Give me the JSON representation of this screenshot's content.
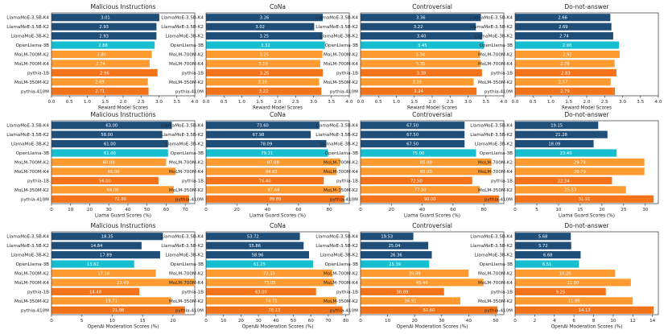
{
  "colors": {
    "llamamoe": "#1f4e79",
    "openllama": "#17becf",
    "molm": "#fd9a30",
    "pythia": "#f5741a"
  },
  "models": [
    "LlamaMoE-3.5B-K4",
    "LlamaMoE-3.5B-K2",
    "LlamaMoE-3B-K2",
    "OpenLlama-3B",
    "MoLM-700M-K2",
    "MoLM-700M-K4",
    "pythia-1B",
    "MoLM-350M-K2",
    "pythia-410M"
  ],
  "model_groups": [
    "llamamoe",
    "llamamoe",
    "llamamoe",
    "openllama",
    "molm",
    "molm",
    "pythia",
    "molm",
    "pythia"
  ],
  "chart_data": [
    {
      "type": "bar",
      "orientation": "horizontal",
      "metric": "reward",
      "title": "Malicious Instructions",
      "xlabel": "Reward Model Scores",
      "xlim": [
        0,
        4
      ],
      "xticks": [
        "0.0",
        "0.5",
        "1.0",
        "1.5",
        "2.0",
        "2.5",
        "3.0",
        "3.5",
        "4.0"
      ],
      "values": [
        3.01,
        2.93,
        2.93,
        2.88,
        2.8,
        2.74,
        2.96,
        2.69,
        2.71
      ],
      "labels": [
        "3.01",
        "2.93",
        "2.93",
        "2.88",
        "2.80",
        "2.74",
        "2.96",
        "2.69",
        "2.71"
      ]
    },
    {
      "type": "bar",
      "orientation": "horizontal",
      "metric": "reward",
      "title": "CoNa",
      "xlabel": "Reward Model Scores",
      "xlim": [
        0,
        4
      ],
      "xticks": [
        "0.0",
        "0.5",
        "1.0",
        "1.5",
        "2.0",
        "2.5",
        "3.0",
        "3.5",
        "4.0"
      ],
      "values": [
        3.26,
        3.02,
        3.25,
        3.32,
        3.25,
        3.19,
        3.26,
        3.16,
        3.22
      ],
      "labels": [
        "3.26",
        "3.02",
        "3.25",
        "3.32",
        "3.25",
        "3.19",
        "3.26",
        "3.16",
        "3.22"
      ]
    },
    {
      "type": "bar",
      "orientation": "horizontal",
      "metric": "reward",
      "title": "Controversial",
      "xlabel": "Reward Model Scores",
      "xlim": [
        0,
        4
      ],
      "xticks": [
        "0.0",
        "0.5",
        "1.0",
        "1.5",
        "2.0",
        "2.5",
        "3.0",
        "3.5",
        "4.0"
      ],
      "values": [
        3.36,
        3.22,
        3.4,
        3.45,
        3.34,
        3.35,
        3.39,
        3.16,
        3.24
      ],
      "labels": [
        "3.36",
        "3.22",
        "3.40",
        "3.45",
        "3.34",
        "3.35",
        "3.39",
        "3.16",
        "3.24"
      ]
    },
    {
      "type": "bar",
      "orientation": "horizontal",
      "metric": "reward",
      "title": "Do-not-answer",
      "xlabel": "Reward Model Scores",
      "xlim": [
        0,
        4
      ],
      "xticks": [
        "0.0",
        "0.5",
        "1.0",
        "1.5",
        "2.0",
        "2.5",
        "3.0",
        "3.5",
        "4.0"
      ],
      "values": [
        2.66,
        2.69,
        2.74,
        2.9,
        2.92,
        2.78,
        2.83,
        2.67,
        2.79
      ],
      "labels": [
        "2.66",
        "2.69",
        "2.74",
        "2.90",
        "2.92",
        "2.78",
        "2.83",
        "2.67",
        "2.79"
      ]
    },
    {
      "type": "bar",
      "orientation": "horizontal",
      "metric": "llamaguard",
      "title": "Malicious Instructions",
      "xlabel": "Llama Guard Scores (%)",
      "xlim": [
        0,
        75
      ],
      "xticks": [
        "0",
        "10",
        "20",
        "30",
        "40",
        "50",
        "60",
        "70"
      ],
      "values": [
        63,
        58,
        61,
        61,
        60,
        65,
        56,
        64,
        72
      ],
      "labels": [
        "63.00",
        "58.00",
        "61.00",
        "61.00",
        "60.00",
        "65.00",
        "56.00",
        "64.00",
        "72.00"
      ]
    },
    {
      "type": "bar",
      "orientation": "horizontal",
      "metric": "llamaguard",
      "title": "CoNa",
      "xlabel": "Llama Guard Scores (%)",
      "xlim": [
        0,
        93
      ],
      "xticks": [
        "0",
        "20",
        "40",
        "60",
        "80"
      ],
      "values": [
        73.6,
        67.98,
        78.09,
        79.21,
        87.08,
        84.83,
        76.4,
        87.64,
        89.89
      ],
      "labels": [
        "73.60",
        "67.98",
        "78.09",
        "79.21",
        "87.08",
        "84.83",
        "76.40",
        "87.64",
        "89.89"
      ]
    },
    {
      "type": "bar",
      "orientation": "horizontal",
      "metric": "llamaguard",
      "title": "Controversial",
      "xlabel": "Llama Guard Scores (%)",
      "xlim": [
        0,
        93
      ],
      "xticks": [
        "0",
        "20",
        "40",
        "60",
        "80"
      ],
      "values": [
        67.5,
        67.5,
        67.5,
        75,
        85,
        85,
        72.5,
        77.5,
        90
      ],
      "labels": [
        "67.50",
        "67.50",
        "67.50",
        "75.00",
        "85.00",
        "85.00",
        "72.50",
        "77.50",
        "90.00"
      ]
    },
    {
      "type": "bar",
      "orientation": "horizontal",
      "metric": "llamaguard",
      "title": "Do-not-answer",
      "xlabel": "Llama Guard Scores (%)",
      "xlim": [
        0,
        33
      ],
      "xticks": [
        "0",
        "5",
        "10",
        "15",
        "20",
        "25",
        "30"
      ],
      "values": [
        19.15,
        21.28,
        18.09,
        23.4,
        29.79,
        29.79,
        22.34,
        25.53,
        31.91
      ],
      "labels": [
        "19.15",
        "21.28",
        "18.09",
        "23.40",
        "29.79",
        "29.79",
        "22.34",
        "25.53",
        "31.91"
      ]
    },
    {
      "type": "bar",
      "orientation": "horizontal",
      "metric": "openai",
      "title": "Malicious Instructions",
      "xlabel": "OpenAI Moderation Scores (%)",
      "xlim": [
        0,
        23.6
      ],
      "xticks": [
        "0",
        "5",
        "10",
        "15",
        "20"
      ],
      "values": [
        18.35,
        14.84,
        17.89,
        13.62,
        17.18,
        23.49,
        14.48,
        19.71,
        21.98
      ],
      "labels": [
        "18.35",
        "14.84",
        "17.89",
        "13.62",
        "17.18",
        "23.49",
        "14.48",
        "19.71",
        "21.98"
      ]
    },
    {
      "type": "bar",
      "orientation": "horizontal",
      "metric": "openai",
      "title": "CoNa",
      "xlabel": "OpenAI Moderation Scores (%)",
      "xlim": [
        0,
        82
      ],
      "xticks": [
        "0",
        "10",
        "20",
        "30",
        "40",
        "50",
        "60",
        "70",
        "80"
      ],
      "values": [
        53.72,
        55.86,
        58.96,
        61.25,
        72.23,
        73.05,
        63,
        74.71,
        78.13
      ],
      "labels": [
        "53.72",
        "55.86",
        "58.96",
        "61.25",
        "72.23",
        "73.05",
        "63.00",
        "74.71",
        "78.13"
      ]
    },
    {
      "type": "bar",
      "orientation": "horizontal",
      "metric": "openai",
      "title": "Controversial",
      "xlabel": "OpenAI Moderation Scores (%)",
      "xlim": [
        0,
        53
      ],
      "xticks": [
        "0",
        "10",
        "20",
        "30",
        "40",
        "50"
      ],
      "values": [
        19.53,
        25.04,
        26.36,
        25.39,
        39.99,
        45.46,
        30.89,
        36.91,
        50.6
      ],
      "labels": [
        "19.53",
        "25.04",
        "26.36",
        "25.39",
        "39.99",
        "45.46",
        "30.89",
        "36.91",
        "50.60"
      ]
    },
    {
      "type": "bar",
      "orientation": "horizontal",
      "metric": "openai",
      "title": "Do-not-answer",
      "xlabel": "OpenAI Moderation Scores (%)",
      "xlim": [
        0,
        14.6
      ],
      "xticks": [
        "0",
        "2",
        "4",
        "6",
        "8",
        "10",
        "12",
        "14"
      ],
      "values": [
        5.68,
        5.72,
        6.68,
        6.51,
        10.2,
        11.8,
        9.25,
        11.99,
        14.13
      ],
      "labels": [
        "5.68",
        "5.72",
        "6.68",
        "6.51",
        "10.20",
        "11.80",
        "9.25",
        "11.99",
        "14.13"
      ]
    }
  ]
}
